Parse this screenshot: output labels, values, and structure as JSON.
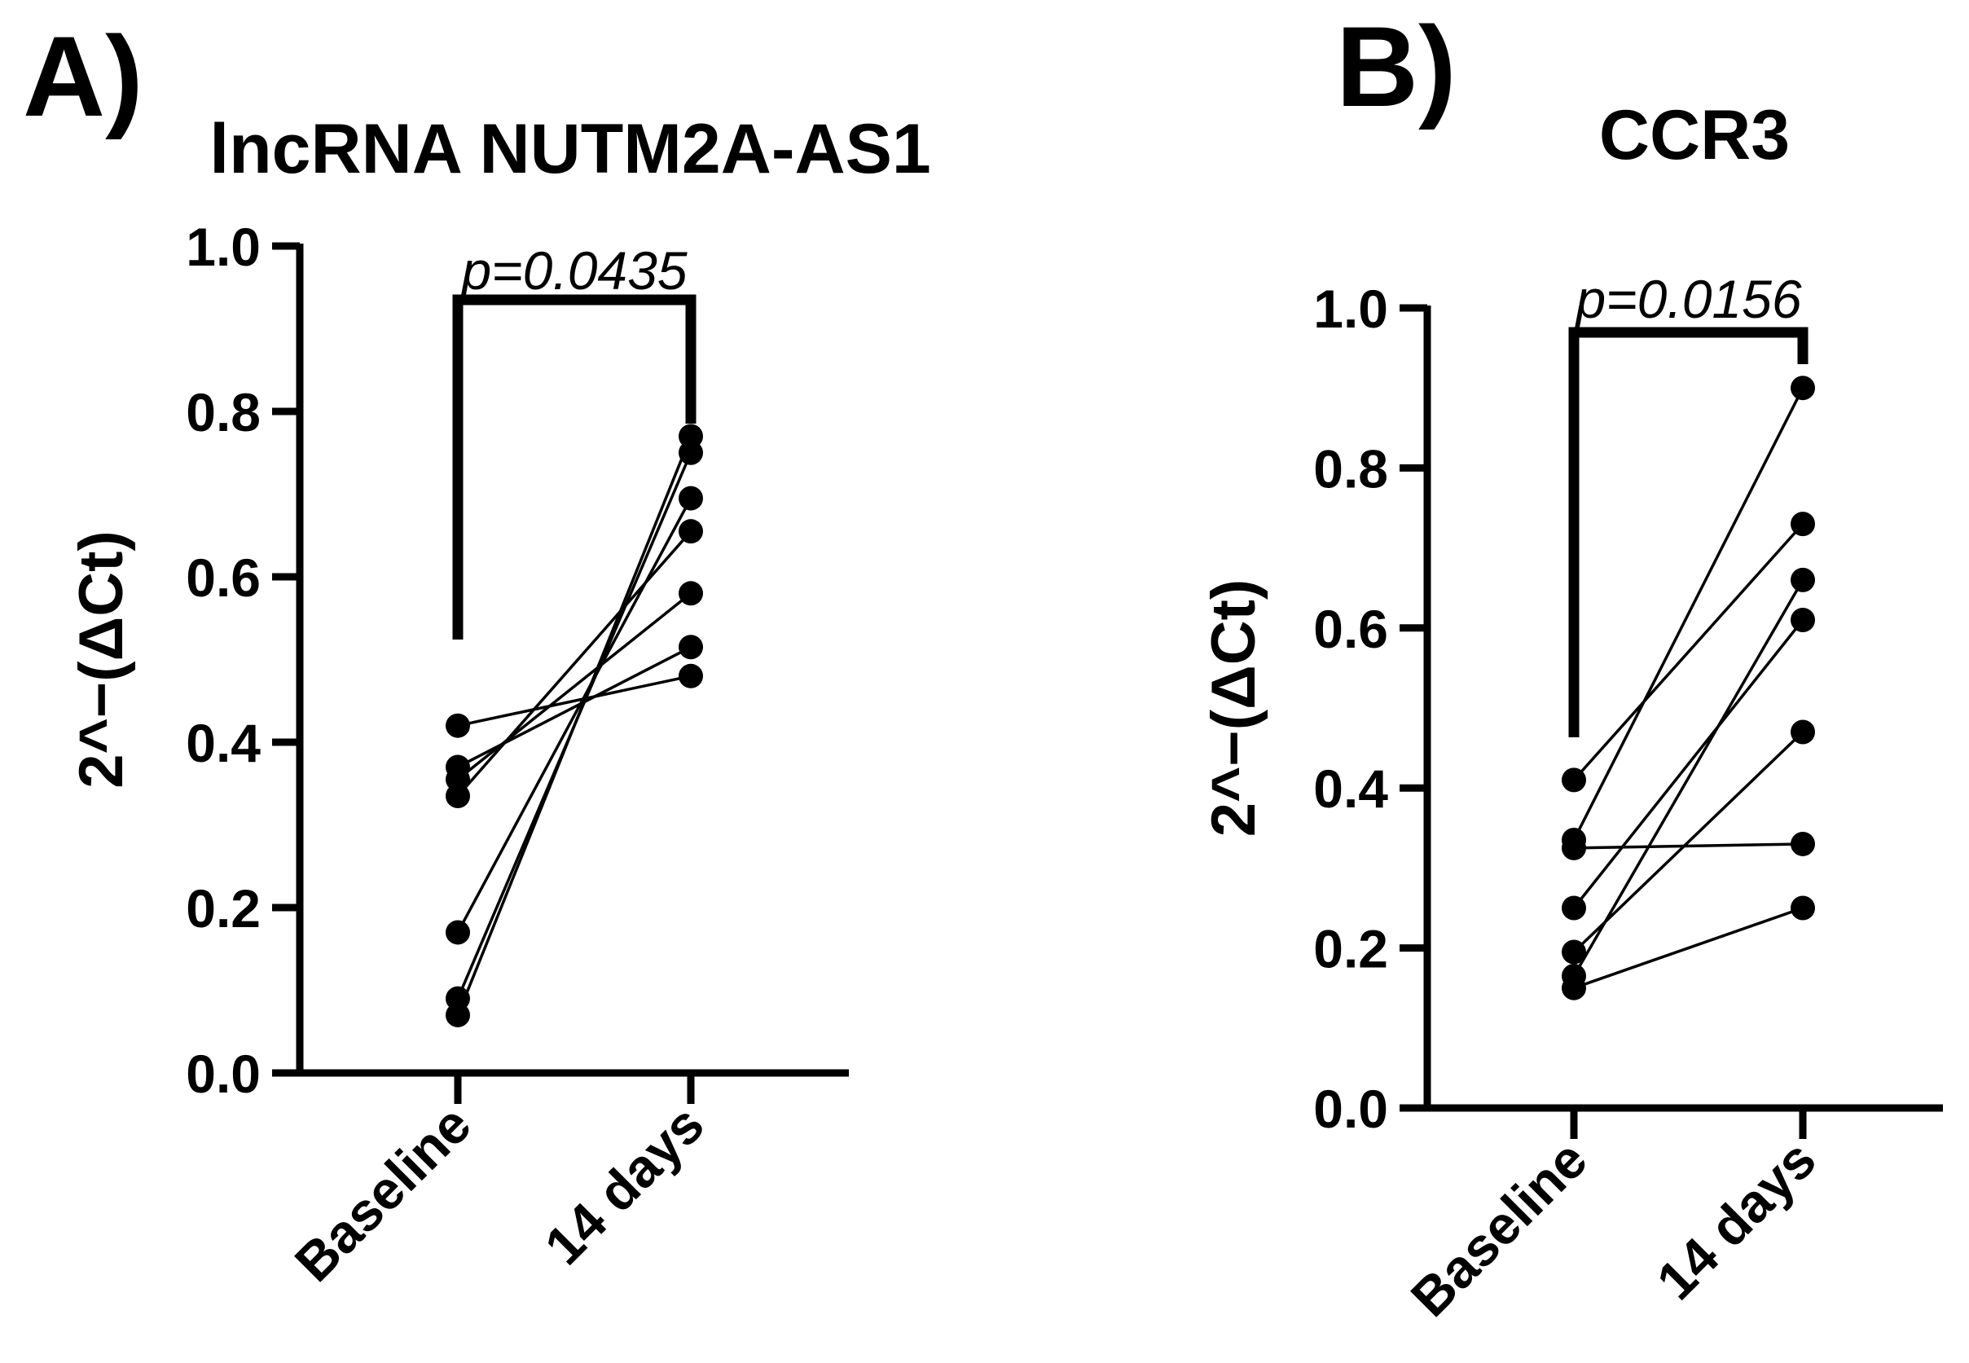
{
  "chart_data": [
    {
      "type": "line",
      "panel": "A)",
      "title": "lncRNA NUTM2A-AS1",
      "ylabel": "2^−(ΔCt)",
      "categories": [
        "Baseline",
        "14 days"
      ],
      "ylim": [
        0,
        1.0
      ],
      "yticks": [
        "0.0",
        "0.2",
        "0.4",
        "0.6",
        "0.8",
        "1.0"
      ],
      "annotation": "p=0.0435",
      "series": [
        {
          "values": [
            0.42,
            0.48
          ]
        },
        {
          "values": [
            0.37,
            0.515
          ]
        },
        {
          "values": [
            0.355,
            0.58
          ]
        },
        {
          "values": [
            0.335,
            0.655
          ]
        },
        {
          "values": [
            0.17,
            0.695
          ]
        },
        {
          "values": [
            0.09,
            0.75
          ]
        },
        {
          "values": [
            0.07,
            0.77
          ]
        }
      ],
      "colors": {
        "line": "#000000",
        "marker": "#000000"
      }
    },
    {
      "type": "line",
      "panel": "B)",
      "title": "CCR3",
      "ylabel": "2^−(ΔCt)",
      "categories": [
        "Baseline",
        "14 days"
      ],
      "ylim": [
        0,
        1.0
      ],
      "yticks": [
        "0.0",
        "0.2",
        "0.4",
        "0.6",
        "0.8",
        "1.0"
      ],
      "annotation": "p=0.0156",
      "series": [
        {
          "values": [
            0.41,
            0.73
          ]
        },
        {
          "values": [
            0.335,
            0.9
          ]
        },
        {
          "values": [
            0.325,
            0.33
          ]
        },
        {
          "values": [
            0.25,
            0.61
          ]
        },
        {
          "values": [
            0.195,
            0.47
          ]
        },
        {
          "values": [
            0.165,
            0.66
          ]
        },
        {
          "values": [
            0.15,
            0.25
          ]
        }
      ],
      "colors": {
        "line": "#000000",
        "marker": "#000000"
      }
    }
  ]
}
